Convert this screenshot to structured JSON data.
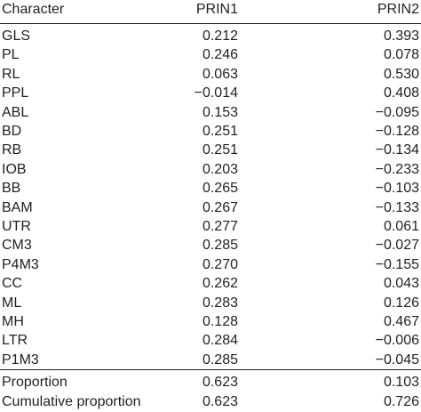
{
  "table": {
    "headers": [
      "Character",
      "PRIN1",
      "PRIN2"
    ],
    "rows": [
      [
        "GLS",
        "0.212",
        "0.393"
      ],
      [
        "PL",
        "0.246",
        "0.078"
      ],
      [
        "RL",
        "0.063",
        "0.530"
      ],
      [
        "PPL",
        "−0.014",
        "0.408"
      ],
      [
        "ABL",
        "0.153",
        "−0.095"
      ],
      [
        "BD",
        "0.251",
        "−0.128"
      ],
      [
        "RB",
        "0.251",
        "−0.134"
      ],
      [
        "IOB",
        "0.203",
        "−0.233"
      ],
      [
        "BB",
        "0.265",
        "−0.103"
      ],
      [
        "BAM",
        "0.267",
        "−0.133"
      ],
      [
        "UTR",
        "0.277",
        "0.061"
      ],
      [
        "CM3",
        "0.285",
        "−0.027"
      ],
      [
        "P4M3",
        "0.270",
        "−0.155"
      ],
      [
        "CC",
        "0.262",
        "0.043"
      ],
      [
        "ML",
        "0.283",
        "0.126"
      ],
      [
        "MH",
        "0.128",
        "0.467"
      ],
      [
        "LTR",
        "0.284",
        "−0.006"
      ],
      [
        "P1M3",
        "0.285",
        "−0.045"
      ]
    ],
    "footer_rows": [
      [
        "Proportion",
        "0.623",
        "0.103"
      ],
      [
        "Cumulative proportion",
        "0.623",
        "0.726"
      ]
    ]
  }
}
